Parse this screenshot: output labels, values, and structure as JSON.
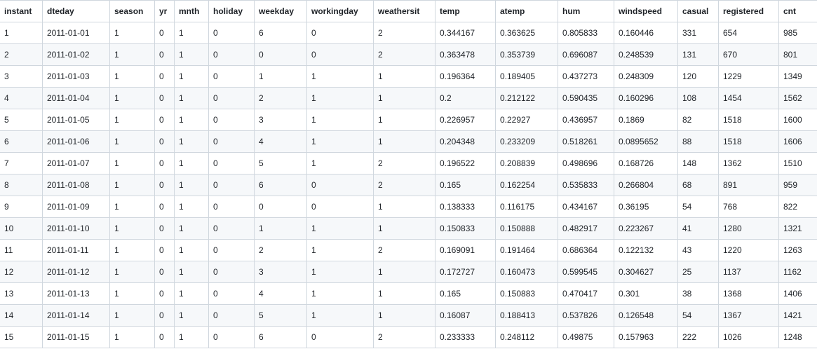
{
  "columns": [
    "instant",
    "dteday",
    "season",
    "yr",
    "mnth",
    "holiday",
    "weekday",
    "workingday",
    "weathersit",
    "temp",
    "atemp",
    "hum",
    "windspeed",
    "casual",
    "registered",
    "cnt"
  ],
  "rows": [
    [
      "1",
      "2011-01-01",
      "1",
      "0",
      "1",
      "0",
      "6",
      "0",
      "2",
      "0.344167",
      "0.363625",
      "0.805833",
      "0.160446",
      "331",
      "654",
      "985"
    ],
    [
      "2",
      "2011-01-02",
      "1",
      "0",
      "1",
      "0",
      "0",
      "0",
      "2",
      "0.363478",
      "0.353739",
      "0.696087",
      "0.248539",
      "131",
      "670",
      "801"
    ],
    [
      "3",
      "2011-01-03",
      "1",
      "0",
      "1",
      "0",
      "1",
      "1",
      "1",
      "0.196364",
      "0.189405",
      "0.437273",
      "0.248309",
      "120",
      "1229",
      "1349"
    ],
    [
      "4",
      "2011-01-04",
      "1",
      "0",
      "1",
      "0",
      "2",
      "1",
      "1",
      "0.2",
      "0.212122",
      "0.590435",
      "0.160296",
      "108",
      "1454",
      "1562"
    ],
    [
      "5",
      "2011-01-05",
      "1",
      "0",
      "1",
      "0",
      "3",
      "1",
      "1",
      "0.226957",
      "0.22927",
      "0.436957",
      "0.1869",
      "82",
      "1518",
      "1600"
    ],
    [
      "6",
      "2011-01-06",
      "1",
      "0",
      "1",
      "0",
      "4",
      "1",
      "1",
      "0.204348",
      "0.233209",
      "0.518261",
      "0.0895652",
      "88",
      "1518",
      "1606"
    ],
    [
      "7",
      "2011-01-07",
      "1",
      "0",
      "1",
      "0",
      "5",
      "1",
      "2",
      "0.196522",
      "0.208839",
      "0.498696",
      "0.168726",
      "148",
      "1362",
      "1510"
    ],
    [
      "8",
      "2011-01-08",
      "1",
      "0",
      "1",
      "0",
      "6",
      "0",
      "2",
      "0.165",
      "0.162254",
      "0.535833",
      "0.266804",
      "68",
      "891",
      "959"
    ],
    [
      "9",
      "2011-01-09",
      "1",
      "0",
      "1",
      "0",
      "0",
      "0",
      "1",
      "0.138333",
      "0.116175",
      "0.434167",
      "0.36195",
      "54",
      "768",
      "822"
    ],
    [
      "10",
      "2011-01-10",
      "1",
      "0",
      "1",
      "0",
      "1",
      "1",
      "1",
      "0.150833",
      "0.150888",
      "0.482917",
      "0.223267",
      "41",
      "1280",
      "1321"
    ],
    [
      "11",
      "2011-01-11",
      "1",
      "0",
      "1",
      "0",
      "2",
      "1",
      "2",
      "0.169091",
      "0.191464",
      "0.686364",
      "0.122132",
      "43",
      "1220",
      "1263"
    ],
    [
      "12",
      "2011-01-12",
      "1",
      "0",
      "1",
      "0",
      "3",
      "1",
      "1",
      "0.172727",
      "0.160473",
      "0.599545",
      "0.304627",
      "25",
      "1137",
      "1162"
    ],
    [
      "13",
      "2011-01-13",
      "1",
      "0",
      "1",
      "0",
      "4",
      "1",
      "1",
      "0.165",
      "0.150883",
      "0.470417",
      "0.301",
      "38",
      "1368",
      "1406"
    ],
    [
      "14",
      "2011-01-14",
      "1",
      "0",
      "1",
      "0",
      "5",
      "1",
      "1",
      "0.16087",
      "0.188413",
      "0.537826",
      "0.126548",
      "54",
      "1367",
      "1421"
    ],
    [
      "15",
      "2011-01-15",
      "1",
      "0",
      "1",
      "0",
      "6",
      "0",
      "2",
      "0.233333",
      "0.248112",
      "0.49875",
      "0.157963",
      "222",
      "1026",
      "1248"
    ]
  ]
}
